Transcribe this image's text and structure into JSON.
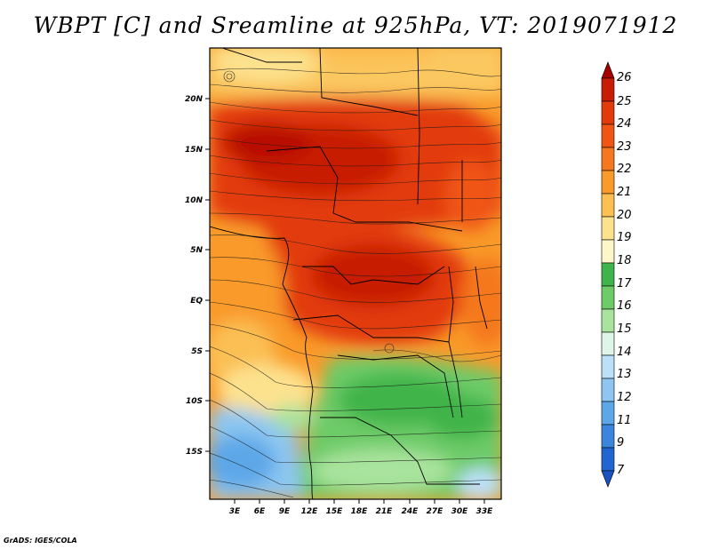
{
  "header": {
    "title": "WBPT [C] and Sreamline at 925hPa, VT: 2019071912"
  },
  "footer": {
    "credit": "GrADS: IGES/COLA"
  },
  "map": {
    "lon_labels": [
      "3E",
      "6E",
      "9E",
      "12E",
      "15E",
      "18E",
      "21E",
      "24E",
      "27E",
      "30E",
      "33E"
    ],
    "lat_labels": [
      "20N",
      "15N",
      "10N",
      "5N",
      "EQ",
      "5S",
      "10S",
      "15S"
    ]
  },
  "colorbar": {
    "labels": [
      "26",
      "25",
      "24",
      "23",
      "22",
      "21",
      "20",
      "19",
      "18",
      "17",
      "16",
      "15",
      "14",
      "13",
      "12",
      "11",
      "9",
      "7"
    ],
    "colors": [
      "#a50000",
      "#c81d04",
      "#e23a0b",
      "#f05513",
      "#f5781e",
      "#f99a2a",
      "#fbbf52",
      "#fde28e",
      "#fdf6c8",
      "#3fb44a",
      "#6dcb68",
      "#a9e39d",
      "#dff5e8",
      "#bde0f9",
      "#8cc6f1",
      "#5da7e8",
      "#3a86dd",
      "#2166d0",
      "#1a52c2"
    ]
  }
}
